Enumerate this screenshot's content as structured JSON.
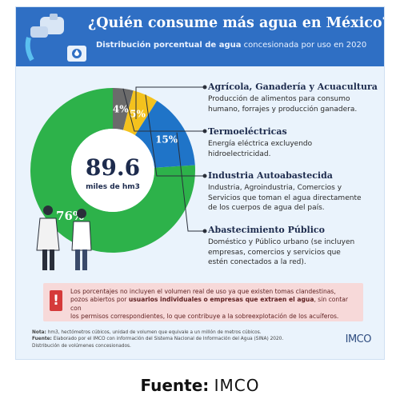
{
  "header": {
    "title": "¿Quién consume más agua en México?",
    "subtitle_bold": "Distribución porcentual de agua",
    "subtitle_rest": "concesionada por uso en 2020"
  },
  "center": {
    "value": "89.6",
    "unit": "miles de hm3"
  },
  "chart_data": {
    "type": "pie",
    "title": "¿Quién consume más agua en México?",
    "subtitle": "Distribución porcentual de agua concesionada por uso en 2020",
    "total": "89.6 miles de hm3",
    "slices": [
      {
        "label": "Agrícola, Ganadería y Acuacultura",
        "value": 76,
        "display": "76%",
        "color": "#2db24a"
      },
      {
        "label": "Termoeléctricas",
        "value": 4,
        "display": "4%",
        "color": "#6b6b6b"
      },
      {
        "label": "Industria Autoabastecida",
        "value": 5,
        "display": "5%",
        "color": "#f4c21d"
      },
      {
        "label": "Abastecimiento Público",
        "value": 15,
        "display": "15%",
        "color": "#1f74c8"
      }
    ]
  },
  "categories": [
    {
      "title": "Agrícola, Ganadería y Acuacultura",
      "desc": [
        "Producción de alimentos para consumo",
        "humano, forrajes y producción ganadera."
      ]
    },
    {
      "title": "Termoeléctricas",
      "desc": [
        "Energía eléctrica excluyendo",
        "hidroelectricidad."
      ]
    },
    {
      "title": "Industria Autoabastecida",
      "desc": [
        "Industria, Agroindustria, Comercios y",
        "Servicios que toman el agua directamente",
        "de los cuerpos de agua del país."
      ]
    },
    {
      "title": "Abastecimiento Público",
      "desc": [
        "Doméstico y Público urbano (se incluyen",
        "empresas, comercios y servicios que",
        "estén conectados a la red)."
      ]
    }
  ],
  "warning": {
    "icon": "!",
    "text1": "Los porcentajes no incluyen el volumen real de uso ya que existen tomas clandestinas,",
    "text2": "pozos abiertos por",
    "text2_bold": "usuarios individuales o empresas que extraen el agua",
    "text2_rest": ", sin contar con",
    "text3": "los permisos correspondientes, lo que contribuye a la sobreexplotación de los acuíferos."
  },
  "notes": {
    "nota_label": "Nota:",
    "nota": "hm3, hectómetros cúbicos, unidad de volumen que equivale a un millón de metros cúbicos.",
    "fuente_label": "Fuente:",
    "fuente": "Elaborado por el IMCO con información del Sistema Nacional de Información del Agua (SINA) 2020.",
    "extra": "Distribución de volúmenes concesionados."
  },
  "logo": "IMCO",
  "footer": {
    "label": "Fuente:",
    "value": "IMCO"
  },
  "colors": {
    "header": "#2f6fc4",
    "background": "#eaf3fc",
    "warning": "#d53a3a"
  }
}
